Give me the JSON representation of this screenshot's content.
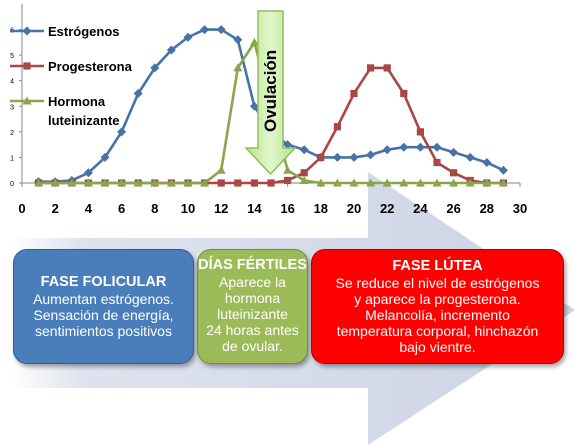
{
  "chart_data": {
    "type": "line",
    "x": [
      1,
      2,
      3,
      4,
      5,
      6,
      7,
      8,
      9,
      10,
      11,
      12,
      13,
      14,
      15,
      16,
      17,
      18,
      19,
      20,
      21,
      22,
      23,
      24,
      25,
      26,
      27,
      28,
      29
    ],
    "series": [
      {
        "name": "Estrógenos",
        "color": "#4572a7",
        "marker": "diamond",
        "values": [
          0.05,
          0.05,
          0.1,
          0.4,
          1.0,
          2.0,
          3.5,
          4.5,
          5.2,
          5.7,
          6.0,
          6.0,
          5.6,
          3.0,
          2.0,
          1.5,
          1.3,
          1.0,
          1.0,
          1.0,
          1.1,
          1.3,
          1.4,
          1.4,
          1.4,
          1.2,
          1.0,
          0.8,
          0.5
        ]
      },
      {
        "name": "Progesterona",
        "color": "#aa4643",
        "marker": "square",
        "values": [
          0,
          0,
          0,
          0,
          0,
          0,
          0,
          0,
          0,
          0,
          0,
          0,
          0,
          0,
          0,
          0.1,
          0.4,
          1.0,
          2.2,
          3.5,
          4.5,
          4.5,
          3.5,
          2.0,
          0.8,
          0.4,
          0.1,
          0,
          0
        ]
      },
      {
        "name": "Hormona luteinizante",
        "color": "#89a54e",
        "marker": "triangle",
        "values": [
          0,
          0,
          0,
          0,
          0,
          0,
          0,
          0,
          0,
          0,
          0,
          0.5,
          4.5,
          5.5,
          3.0,
          0.5,
          0.1,
          0,
          0,
          0,
          0,
          0,
          0,
          0,
          0,
          0,
          0,
          0,
          0
        ]
      }
    ],
    "xlim": [
      0,
      30
    ],
    "ylim": [
      0,
      7
    ],
    "xticks": [
      "0",
      "2",
      "4",
      "6",
      "8",
      "10",
      "12",
      "14",
      "16",
      "18",
      "20",
      "22",
      "24",
      "26",
      "28",
      "30"
    ],
    "yticks": [
      "0",
      "1",
      "2",
      "3",
      "4",
      "5",
      "6"
    ],
    "legend": {
      "entries": [
        "Estrógenos",
        "Progesterona",
        "Hormona",
        "luteinizante"
      ],
      "placement": "left"
    },
    "annotation": "Ovulación"
  },
  "phases": {
    "folicular": {
      "title": "FASE FOLICULAR",
      "lines": [
        "Aumentan estrógenos.",
        "Sensación de energía,",
        "sentimientos positivos"
      ]
    },
    "fertiles": {
      "title": "DÍAS FÉRTILES",
      "lines": [
        "Aparece la",
        "hormona",
        "luteinizante",
        "24 horas antes",
        "de ovular."
      ]
    },
    "lutea": {
      "title": "FASE LÚTEA",
      "lines": [
        "Se reduce el nivel de estrógenos",
        "y aparece la progesterona.",
        "Melancolía, incremento",
        "temperatura corporal, hinchazón",
        "bajo vientre."
      ]
    }
  },
  "colors": {
    "folicular": "#4a7ebb",
    "fertiles": "#9bbb59",
    "lutea": "#ff0000",
    "background_arrow": "#d5dbea",
    "ovulation_arrow": "#c9eca4"
  }
}
